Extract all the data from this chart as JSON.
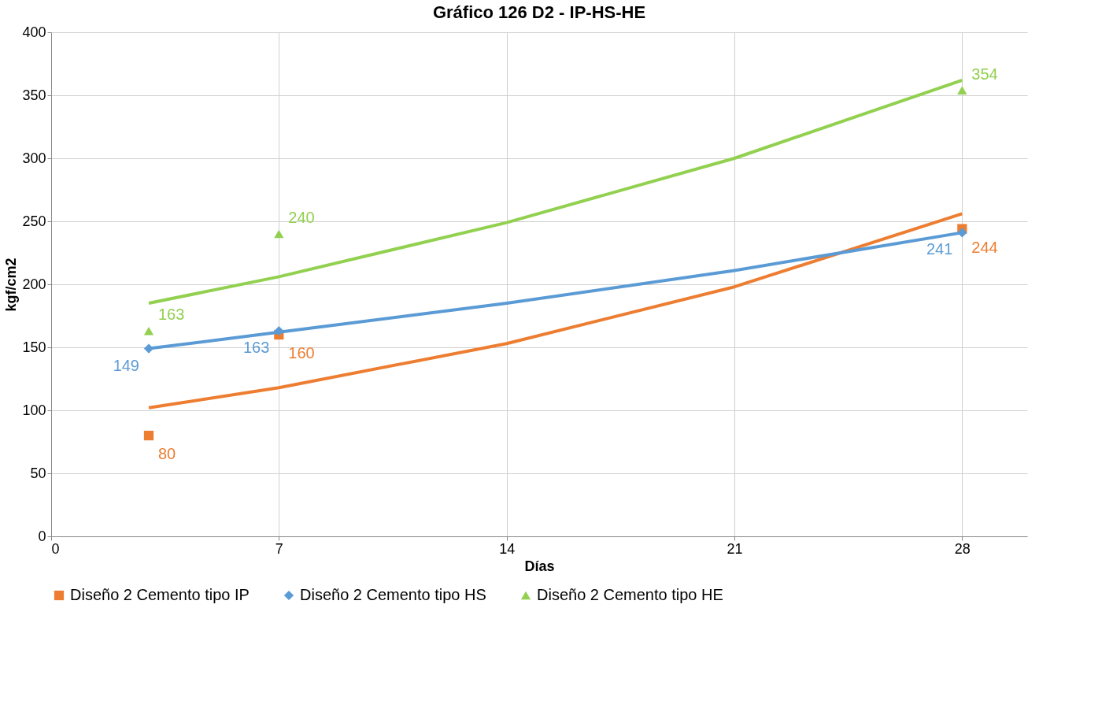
{
  "chart_data": {
    "type": "scatter",
    "title": "Gráfico 126 D2 - IP-HS-HE",
    "xlabel": "Días",
    "ylabel": "kgf/cm2",
    "x": [
      3,
      7,
      28
    ],
    "series": [
      {
        "name": "Diseño 2 Cemento tipo IP",
        "color": "#ed7d31",
        "marker": "square",
        "values": [
          80,
          160,
          244
        ],
        "value_labels": [
          "80",
          "160",
          "244"
        ]
      },
      {
        "name": "Diseño 2 Cemento tipo HS",
        "color": "#5b9bd5",
        "marker": "diamond",
        "values": [
          149,
          163,
          241
        ],
        "value_labels": [
          "149",
          "163",
          "241"
        ]
      },
      {
        "name": "Diseño 2 Cemento tipo HE",
        "color": "#92d050",
        "marker": "triangle",
        "values": [
          163,
          240,
          354
        ],
        "value_labels": [
          "163",
          "240",
          "354"
        ]
      },
      {
        "type": "line",
        "color": "#ed7d31",
        "marker": "none",
        "line_style": "solid",
        "x": [
          3,
          7,
          14,
          21,
          28
        ],
        "values": [
          102,
          118,
          153,
          198,
          256
        ]
      },
      {
        "type": "line",
        "color": "#5b9bd5",
        "marker": "none",
        "line_style": "solid",
        "x": [
          3,
          7,
          14,
          21,
          28
        ],
        "values": [
          149,
          162,
          185,
          211,
          241
        ]
      },
      {
        "type": "line",
        "color": "#92d050",
        "marker": "none",
        "line_style": "solid",
        "x": [
          3,
          7,
          14,
          21,
          28
        ],
        "values": [
          185,
          206,
          249,
          300,
          362
        ]
      }
    ],
    "xlim": [
      0,
      30
    ],
    "xticks": [
      0,
      7,
      14,
      21,
      28
    ],
    "ylim": [
      0,
      400
    ],
    "yticks": [
      0,
      50,
      100,
      150,
      200,
      250,
      300,
      350,
      400
    ],
    "grid": true,
    "legend": "bottom"
  }
}
